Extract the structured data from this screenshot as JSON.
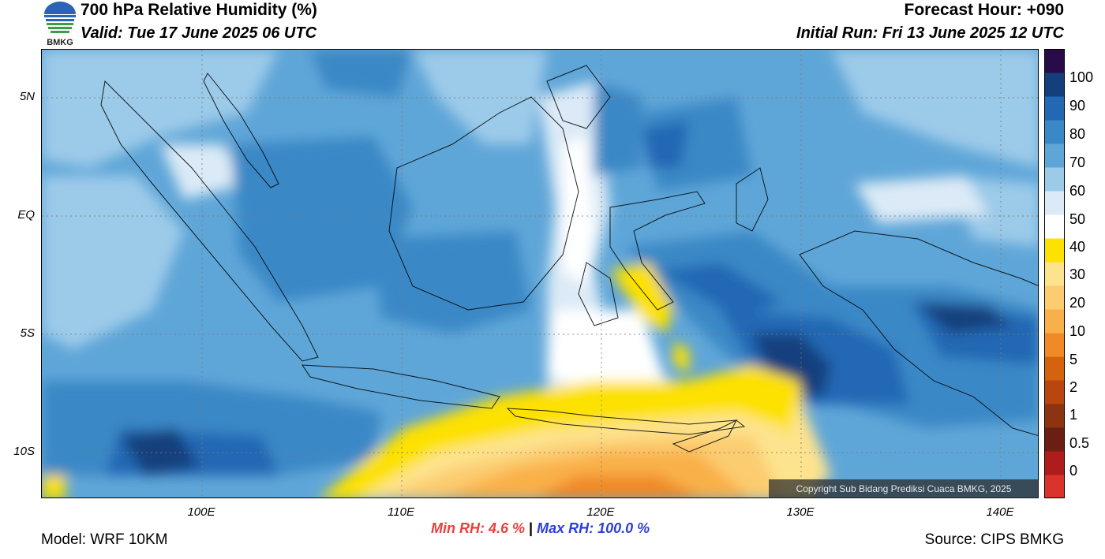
{
  "header": {
    "title": "700 hPa Relative Humidity (%)",
    "valid": "Valid: Tue 17 June 2025 06 UTC",
    "forecast_hour": "Forecast Hour: +090",
    "initial_run": "Initial Run: Fri 13 June 2025 12 UTC",
    "logo_text": "BMKG"
  },
  "map": {
    "lat_labels": [
      "5N",
      "EQ",
      "5S",
      "10S"
    ],
    "lon_labels": [
      "100E",
      "110E",
      "120E",
      "130E",
      "140E"
    ],
    "lat_values": [
      5,
      0,
      -5,
      -10
    ],
    "lon_values": [
      100,
      110,
      120,
      130,
      140
    ],
    "extent": {
      "lon_min": 92,
      "lon_max": 142,
      "lat_min": -12,
      "lat_max": 7
    },
    "copyright": "Copyright Sub Bidang Prediksi Cuaca BMKG, 2025"
  },
  "colorbar": {
    "labels": [
      "100",
      "90",
      "80",
      "70",
      "60",
      "50",
      "40",
      "30",
      "20",
      "10",
      "5",
      "2",
      "1",
      "0.5",
      "0"
    ],
    "colors": [
      "#d9332b",
      "#b01b1b",
      "#6b1e12",
      "#8c3310",
      "#b8460e",
      "#d4620e",
      "#f08a26",
      "#f9b04a",
      "#fccc70",
      "#fde38e",
      "#fde100",
      "#ffffff",
      "#dbeaf6",
      "#9ccae9",
      "#5fa6d8",
      "#3a88c6",
      "#2268b4",
      "#13407d",
      "#2a0b4a"
    ]
  },
  "stats": {
    "min_label": "Min RH:",
    "min_value": "4.6 %",
    "separator": "|",
    "max_label": "Max RH:",
    "max_value": "100.0 %"
  },
  "footer": {
    "model": "Model: WRF 10KM",
    "source": "Source: CIPS BMKG"
  }
}
